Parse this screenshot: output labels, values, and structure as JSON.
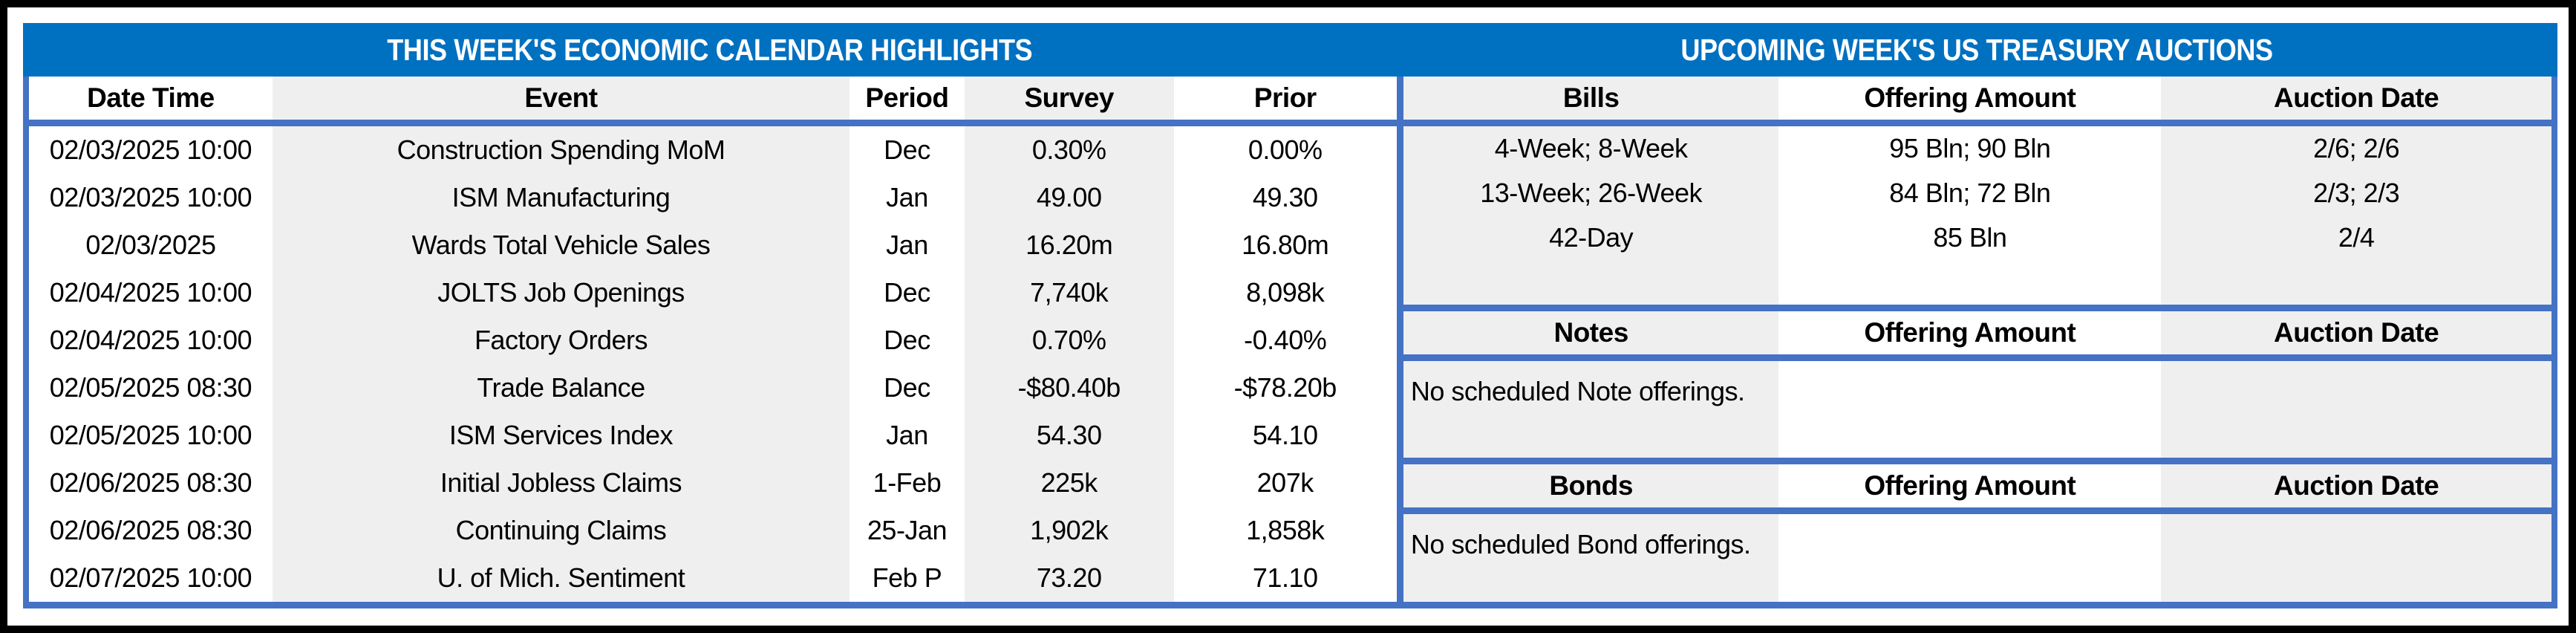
{
  "colors": {
    "title_bar_blue": "#0070C0",
    "table_border_blue": "#4472C4",
    "stripe_gray": "#EFEFEF"
  },
  "left_table": {
    "title": "THIS WEEK'S ECONOMIC CALENDAR HIGHLIGHTS",
    "columns": [
      "Date Time",
      "Event",
      "Period",
      "Survey",
      "Prior"
    ],
    "rows": [
      {
        "date_time": "02/03/2025 10:00",
        "event": "Construction Spending MoM",
        "period": "Dec",
        "survey": "0.30%",
        "prior": "0.00%"
      },
      {
        "date_time": "02/03/2025 10:00",
        "event": "ISM Manufacturing",
        "period": "Jan",
        "survey": "49.00",
        "prior": "49.30"
      },
      {
        "date_time": "02/03/2025",
        "event": "Wards Total Vehicle Sales",
        "period": "Jan",
        "survey": "16.20m",
        "prior": "16.80m"
      },
      {
        "date_time": "02/04/2025 10:00",
        "event": "JOLTS Job Openings",
        "period": "Dec",
        "survey": "7,740k",
        "prior": "8,098k"
      },
      {
        "date_time": "02/04/2025 10:00",
        "event": "Factory Orders",
        "period": "Dec",
        "survey": "0.70%",
        "prior": "-0.40%"
      },
      {
        "date_time": "02/05/2025 08:30",
        "event": "Trade Balance",
        "period": "Dec",
        "survey": "-$80.40b",
        "prior": "-$78.20b"
      },
      {
        "date_time": "02/05/2025 10:00",
        "event": "ISM Services Index",
        "period": "Jan",
        "survey": "54.30",
        "prior": "54.10"
      },
      {
        "date_time": "02/06/2025 08:30",
        "event": "Initial Jobless Claims",
        "period": "1-Feb",
        "survey": "225k",
        "prior": "207k"
      },
      {
        "date_time": "02/06/2025 08:30",
        "event": "Continuing Claims",
        "period": "25-Jan",
        "survey": "1,902k",
        "prior": "1,858k"
      },
      {
        "date_time": "02/07/2025 10:00",
        "event": "U. of Mich. Sentiment",
        "period": "Feb P",
        "survey": "73.20",
        "prior": "71.10"
      }
    ]
  },
  "right_table": {
    "title": "UPCOMING WEEK'S US TREASURY AUCTIONS",
    "bills": {
      "columns": [
        "Bills",
        "Offering Amount",
        "Auction Date"
      ],
      "rows": [
        {
          "security": "4-Week; 8-Week",
          "offering_amount": "95 Bln; 90 Bln",
          "auction_date": "2/6; 2/6"
        },
        {
          "security": "13-Week; 26-Week",
          "offering_amount": "84 Bln; 72 Bln",
          "auction_date": "2/3; 2/3"
        },
        {
          "security": "42-Day",
          "offering_amount": "85 Bln",
          "auction_date": "2/4"
        },
        {
          "security": "",
          "offering_amount": "",
          "auction_date": ""
        }
      ]
    },
    "notes": {
      "columns": [
        "Notes",
        "Offering Amount",
        "Auction Date"
      ],
      "message": "No scheduled Note offerings."
    },
    "bonds": {
      "columns": [
        "Bonds",
        "Offering Amount",
        "Auction Date"
      ],
      "message": "No scheduled Bond offerings."
    }
  }
}
